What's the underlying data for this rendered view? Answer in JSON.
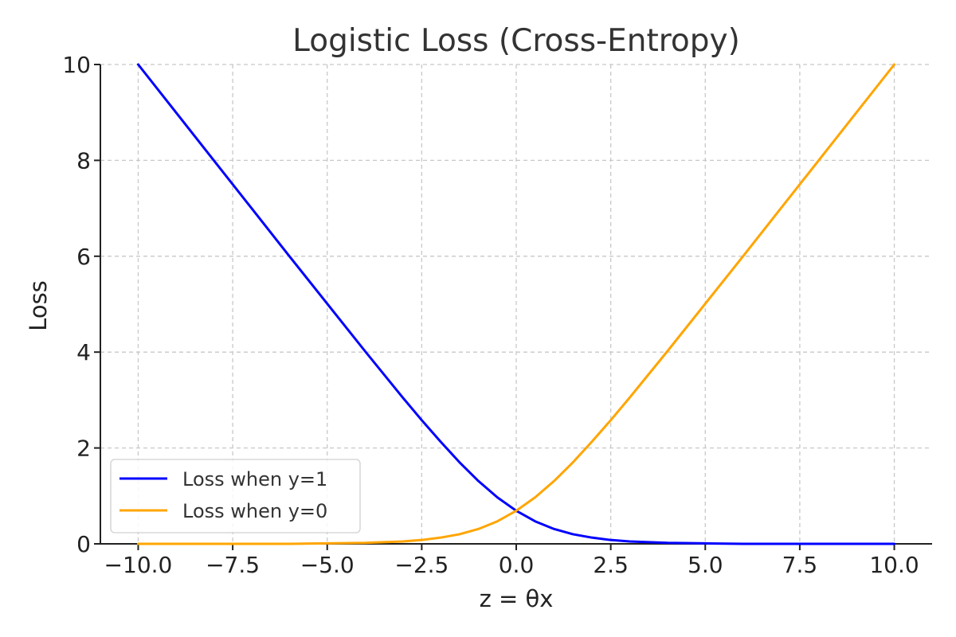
{
  "chart_data": {
    "type": "line",
    "title": "Logistic Loss (Cross-Entropy)",
    "xlabel": "z = θx",
    "ylabel": "Loss",
    "xlim": [
      -11,
      11
    ],
    "ylim": [
      0,
      10
    ],
    "x_ticks": [
      -10.0,
      -7.5,
      -5.0,
      -2.5,
      0.0,
      2.5,
      5.0,
      7.5,
      10.0
    ],
    "x_tick_labels": [
      "−10.0",
      "−7.5",
      "−5.0",
      "−2.5",
      "0.0",
      "2.5",
      "5.0",
      "7.5",
      "10.0"
    ],
    "y_ticks": [
      0,
      2,
      4,
      6,
      8,
      10
    ],
    "y_tick_labels": [
      "0",
      "2",
      "4",
      "6",
      "8",
      "10"
    ],
    "grid": true,
    "legend_position": "lower-left",
    "series": [
      {
        "name": "Loss when y=1",
        "color": "#0000ff",
        "x": [
          -10,
          -9,
          -8,
          -7,
          -6,
          -5,
          -4,
          -3,
          -2.5,
          -2,
          -1.5,
          -1,
          -0.5,
          0,
          0.5,
          1,
          1.5,
          2,
          2.5,
          3,
          4,
          5,
          6,
          7,
          8,
          9,
          10
        ],
        "y": [
          10.0,
          9.0,
          8.0,
          7.0,
          6.0,
          5.01,
          4.02,
          3.05,
          2.58,
          2.13,
          1.7,
          1.31,
          0.97,
          0.69,
          0.47,
          0.31,
          0.2,
          0.13,
          0.08,
          0.05,
          0.02,
          0.01,
          0.0,
          0.0,
          0.0,
          0.0,
          0.0
        ]
      },
      {
        "name": "Loss when y=0",
        "color": "#ffa500",
        "x": [
          -10,
          -9,
          -8,
          -7,
          -6,
          -5,
          -4,
          -3,
          -2.5,
          -2,
          -1.5,
          -1,
          -0.5,
          0,
          0.5,
          1,
          1.5,
          2,
          2.5,
          3,
          4,
          5,
          6,
          7,
          8,
          9,
          10
        ],
        "y": [
          0.0,
          0.0,
          0.0,
          0.0,
          0.0,
          0.01,
          0.02,
          0.05,
          0.08,
          0.13,
          0.2,
          0.31,
          0.47,
          0.69,
          0.97,
          1.31,
          1.7,
          2.13,
          2.58,
          3.05,
          4.02,
          5.01,
          6.0,
          7.0,
          8.0,
          9.0,
          10.0
        ]
      }
    ]
  }
}
